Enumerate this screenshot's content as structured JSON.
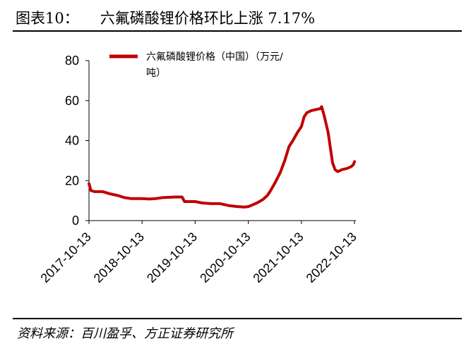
{
  "figure": {
    "label": "图表10：",
    "title": "六氟磷酸锂价格环比上涨 7.17%",
    "source": "资料来源：百川盈孚、方正证券研究所"
  },
  "chart_data": {
    "type": "line",
    "ylim": [
      0,
      80
    ],
    "yticks": [
      0,
      20,
      40,
      60,
      80
    ],
    "xticks": [
      "2017-10-13",
      "2018-10-13",
      "2019-10-13",
      "2020-10-13",
      "2021-10-13",
      "2022-10-13"
    ],
    "grid": false,
    "legend_position": "top-left",
    "legend_lines": [
      "六氟磷酸锂价格（中国）（万元/",
      "吨）"
    ],
    "series": [
      {
        "name": "六氟磷酸锂价格（中国）（万元/吨）",
        "color": "#C00000",
        "points": [
          [
            "2017-10-13",
            18.5
          ],
          [
            "2017-10-27",
            15.0
          ],
          [
            "2017-11-20",
            14.5
          ],
          [
            "2018-01-15",
            14.5
          ],
          [
            "2018-03-01",
            13.5
          ],
          [
            "2018-05-01",
            12.5
          ],
          [
            "2018-06-15",
            11.5
          ],
          [
            "2018-08-01",
            11.0
          ],
          [
            "2018-10-13",
            11.0
          ],
          [
            "2018-12-01",
            10.8
          ],
          [
            "2019-01-15",
            11.0
          ],
          [
            "2019-03-01",
            11.5
          ],
          [
            "2019-06-01",
            11.8
          ],
          [
            "2019-07-15",
            11.8
          ],
          [
            "2019-08-01",
            9.5
          ],
          [
            "2019-10-13",
            9.5
          ],
          [
            "2019-12-01",
            8.8
          ],
          [
            "2020-02-01",
            8.5
          ],
          [
            "2020-04-01",
            8.5
          ],
          [
            "2020-06-01",
            7.5
          ],
          [
            "2020-08-01",
            7.0
          ],
          [
            "2020-09-15",
            6.8
          ],
          [
            "2020-10-13",
            7.0
          ],
          [
            "2020-11-15",
            8.0
          ],
          [
            "2020-12-15",
            9.0
          ],
          [
            "2021-01-20",
            10.5
          ],
          [
            "2021-02-20",
            12.5
          ],
          [
            "2021-03-15",
            15.0
          ],
          [
            "2021-04-15",
            19.0
          ],
          [
            "2021-05-20",
            24.0
          ],
          [
            "2021-06-20",
            30.0
          ],
          [
            "2021-07-20",
            37.0
          ],
          [
            "2021-08-15",
            40.0
          ],
          [
            "2021-09-15",
            44.0
          ],
          [
            "2021-10-13",
            47.0
          ],
          [
            "2021-11-01",
            52.0
          ],
          [
            "2021-11-20",
            54.0
          ],
          [
            "2021-12-20",
            55.0
          ],
          [
            "2022-01-20",
            55.5
          ],
          [
            "2022-02-20",
            56.0
          ],
          [
            "2022-03-01",
            57.0
          ],
          [
            "2022-03-20",
            52.0
          ],
          [
            "2022-04-15",
            44.0
          ],
          [
            "2022-05-01",
            36.0
          ],
          [
            "2022-05-15",
            29.0
          ],
          [
            "2022-06-01",
            25.5
          ],
          [
            "2022-06-20",
            24.5
          ],
          [
            "2022-07-20",
            25.5
          ],
          [
            "2022-08-20",
            26.0
          ],
          [
            "2022-09-20",
            27.0
          ],
          [
            "2022-10-05",
            28.0
          ],
          [
            "2022-10-13",
            29.5
          ]
        ]
      }
    ]
  }
}
